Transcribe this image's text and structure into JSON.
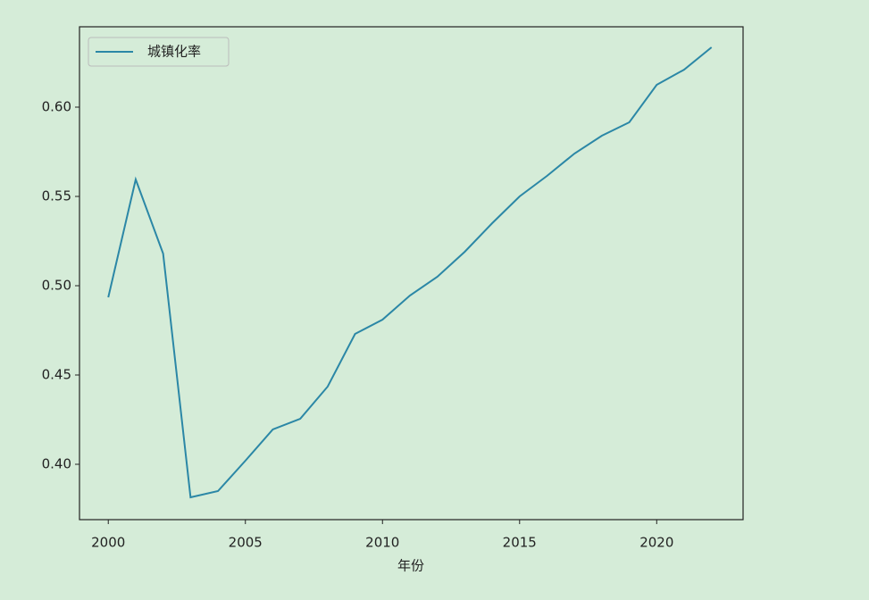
{
  "chart_data": {
    "type": "line",
    "x_label": "年份",
    "x": [
      2000,
      2001,
      2002,
      2003,
      2004,
      2005,
      2006,
      2007,
      2008,
      2009,
      2010,
      2011,
      2012,
      2013,
      2014,
      2015,
      2016,
      2017,
      2018,
      2019,
      2020,
      2021,
      2022
    ],
    "series": [
      {
        "name": "城镇化率",
        "color": "#2b87a6",
        "values": [
          0.4935,
          0.5595,
          0.518,
          0.3815,
          0.385,
          0.402,
          0.4195,
          0.4255,
          0.4435,
          0.473,
          0.481,
          0.4945,
          0.505,
          0.519,
          0.535,
          0.55,
          0.5615,
          0.574,
          0.584,
          0.5915,
          0.6125,
          0.621,
          0.6335
        ]
      }
    ],
    "xlim": [
      1998.95,
      2023.15
    ],
    "xticks": [
      2000,
      2005,
      2010,
      2015,
      2020
    ],
    "ylim": [
      0.369,
      0.645
    ],
    "yticks": [
      {
        "value": 0.4,
        "label": "0.40"
      },
      0.45,
      {
        "value": 0.5,
        "label": "0.50"
      },
      0.55,
      {
        "value": 0.6,
        "label": "0.60"
      }
    ],
    "legend": "upper left",
    "grid": false
  }
}
